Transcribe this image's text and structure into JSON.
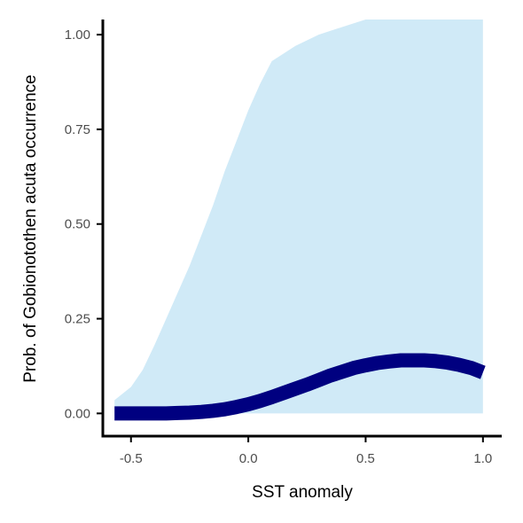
{
  "chart_data": {
    "type": "area",
    "xlabel": "SST anomaly",
    "ylabel": "Prob. of  Gobionotothen acuta  occurrence",
    "xlim": [
      -0.62,
      1.08
    ],
    "ylim": [
      -0.06,
      1.04
    ],
    "x_ticks": [
      -0.5,
      0.0,
      0.5,
      1.0
    ],
    "x_tick_labels": [
      "-0.5",
      "0.0",
      "0.5",
      "1.0"
    ],
    "y_ticks": [
      0.0,
      0.25,
      0.5,
      0.75,
      1.0
    ],
    "y_tick_labels": [
      "0.00",
      "0.25",
      "0.50",
      "0.75",
      "1.00"
    ],
    "grid": false,
    "colors": {
      "ribbon": "#d0eaf7",
      "line": "#000080",
      "axis": "#000000"
    },
    "series": [
      {
        "x": [
          -0.57,
          -0.5,
          -0.45,
          -0.4,
          -0.35,
          -0.3,
          -0.25,
          -0.2,
          -0.15,
          -0.1,
          -0.05,
          0.0,
          0.05,
          0.1,
          0.15,
          0.2,
          0.25,
          0.3,
          0.35,
          0.4,
          0.45,
          0.5,
          0.55,
          0.6,
          0.65,
          0.7,
          0.75,
          0.8,
          0.85,
          0.9,
          0.95,
          1.0
        ],
        "y": [
          0.0,
          0.0,
          0.0,
          0.0,
          0.0,
          0.001,
          0.002,
          0.004,
          0.007,
          0.011,
          0.017,
          0.024,
          0.033,
          0.043,
          0.054,
          0.065,
          0.076,
          0.088,
          0.1,
          0.11,
          0.12,
          0.127,
          0.133,
          0.137,
          0.14,
          0.14,
          0.14,
          0.138,
          0.134,
          0.128,
          0.12,
          0.108
        ],
        "lower": [
          0.0,
          0.0,
          0.0,
          0.0,
          0.0,
          0.0,
          0.0,
          0.0,
          0.0,
          0.0,
          0.0,
          0.0,
          0.0,
          0.0,
          0.0,
          0.0,
          0.0,
          0.0,
          0.0,
          0.0,
          0.0,
          0.0,
          0.0,
          0.0,
          0.0,
          0.0,
          0.0,
          0.0,
          0.0,
          0.0,
          0.0,
          0.0
        ],
        "upper": [
          0.035,
          0.07,
          0.115,
          0.18,
          0.25,
          0.32,
          0.39,
          0.47,
          0.55,
          0.64,
          0.72,
          0.8,
          0.87,
          0.93,
          0.95,
          0.97,
          0.985,
          1.0,
          1.01,
          1.02,
          1.03,
          1.04,
          1.04,
          1.04,
          1.04,
          1.04,
          1.04,
          1.04,
          1.04,
          1.04,
          1.04,
          1.04
        ]
      }
    ]
  }
}
